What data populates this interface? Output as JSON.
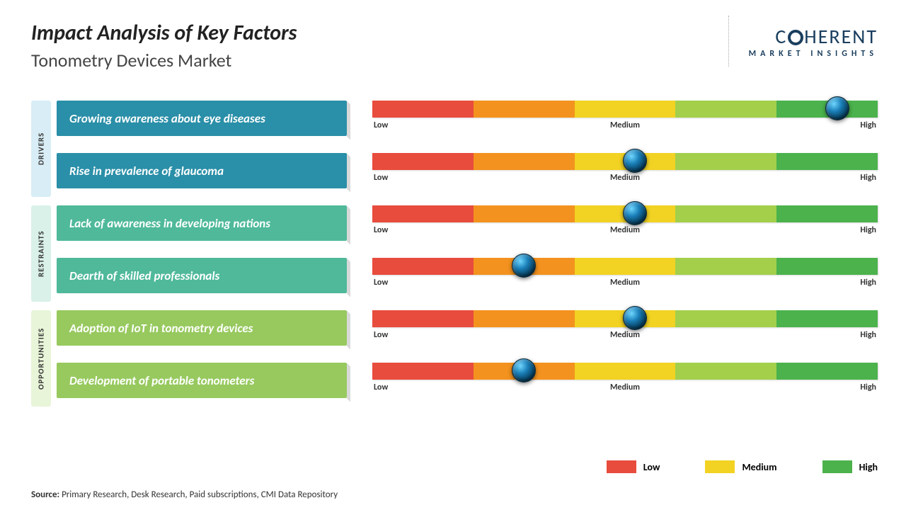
{
  "title": "Impact Analysis of Key Factors",
  "subtitle": "Tonometry Devices Market",
  "logo": {
    "name_part1": "C",
    "name_part2": "HERENT",
    "tagline": "MARKET INSIGHTS"
  },
  "scale": {
    "segment_colors": [
      "#e84c3d",
      "#f3921e",
      "#f2d223",
      "#a3cf4b",
      "#4bb24c"
    ],
    "labels": {
      "low": "Low",
      "medium": "Medium",
      "high": "High"
    }
  },
  "groups": [
    {
      "name": "DRIVERS",
      "tab_bg": "#d8edf5",
      "factor_bg": "#2a8fa8",
      "rows": [
        {
          "factor": "Growing awareness about eye diseases",
          "marker_pct": 92
        },
        {
          "factor": "Rise in prevalence of glaucoma",
          "marker_pct": 52
        }
      ]
    },
    {
      "name": "RESTRAINTS",
      "tab_bg": "#d9f1e9",
      "factor_bg": "#4fb99a",
      "rows": [
        {
          "factor": "Lack of awareness in developing nations",
          "marker_pct": 52
        },
        {
          "factor": "Dearth of skilled professionals",
          "marker_pct": 30
        }
      ]
    },
    {
      "name": "OPPORTUNITIES",
      "tab_bg": "#e8f5d8",
      "factor_bg": "#97c95e",
      "rows": [
        {
          "factor": "Adoption of IoT in tonometry devices",
          "marker_pct": 52
        },
        {
          "factor": "Development of portable tonometers",
          "marker_pct": 30
        }
      ]
    }
  ],
  "legend": [
    {
      "label": "Low",
      "color": "#e84c3d"
    },
    {
      "label": "Medium",
      "color": "#f2d223"
    },
    {
      "label": "High",
      "color": "#4bb24c"
    }
  ],
  "source": {
    "prefix": "Source:",
    "text": " Primary Research, Desk Research, Paid subscriptions, CMI Data Repository"
  }
}
